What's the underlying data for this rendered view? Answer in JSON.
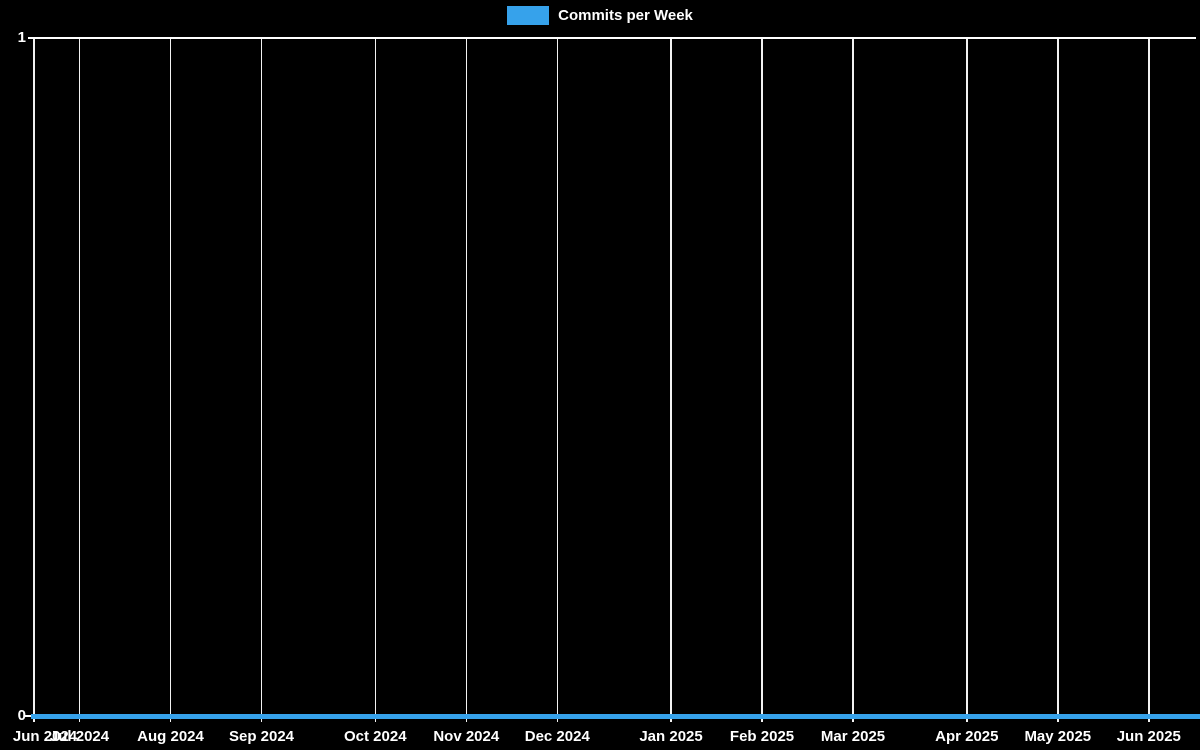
{
  "legend": {
    "label": "Commits per Week",
    "color": "#36a2eb"
  },
  "chart_data": {
    "type": "line",
    "title": "Commits per Week",
    "series": [
      {
        "name": "Commits per Week",
        "color": "#36a2eb",
        "values": [
          0,
          0,
          0,
          0,
          0,
          0,
          0,
          0,
          0,
          0,
          0,
          0,
          0,
          0,
          0,
          0,
          0,
          0,
          0,
          0,
          0,
          0,
          0,
          0,
          0,
          0,
          0,
          0,
          0,
          0,
          0,
          0,
          0,
          0,
          0,
          0,
          0,
          0,
          0,
          0,
          0,
          0,
          0,
          0,
          0,
          0,
          0,
          0,
          0,
          0,
          0,
          0
        ]
      }
    ],
    "x_unit": "week",
    "total_weeks": 51.25,
    "x_ticks": [
      {
        "label": "Jun 2024",
        "week": 0
      },
      {
        "label": "Jul 2024",
        "week": 2
      },
      {
        "label": "Aug 2024",
        "week": 6
      },
      {
        "label": "Sep 2024",
        "week": 10
      },
      {
        "label": "Oct 2024",
        "week": 15
      },
      {
        "label": "Nov 2024",
        "week": 19
      },
      {
        "label": "Dec 2024",
        "week": 23
      },
      {
        "label": "Jan 2025",
        "week": 28
      },
      {
        "label": "Feb 2025",
        "week": 32
      },
      {
        "label": "Mar 2025",
        "week": 36
      },
      {
        "label": "Apr 2025",
        "week": 41
      },
      {
        "label": "May 2025",
        "week": 45
      },
      {
        "label": "Jun 2025",
        "week": 49
      }
    ],
    "y_ticks": [
      {
        "label": "0",
        "value": 0
      },
      {
        "label": "1",
        "value": 1
      }
    ],
    "ylim": [
      0,
      1
    ],
    "xlabel": "",
    "ylabel": "",
    "grid": "vertical-only",
    "legend_position": "top-center",
    "background_color": "#000000",
    "grid_color": "#f2f2f2",
    "text_color": "#ffffff"
  }
}
